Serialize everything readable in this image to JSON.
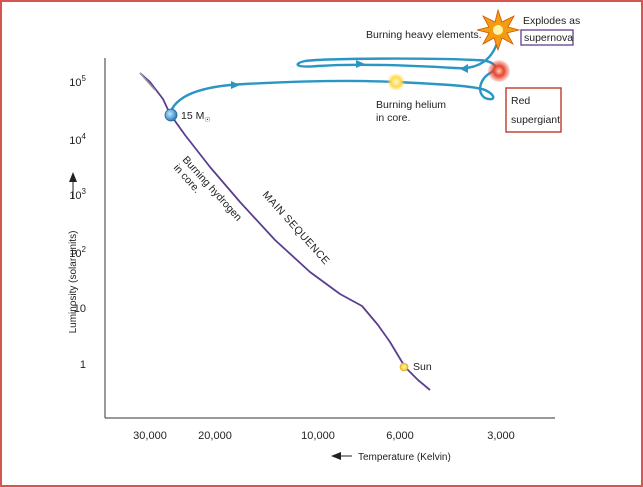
{
  "axes": {
    "ylabel": "Luminosity (solar units)",
    "xlabel": "Temperature (Kelvin)",
    "y_ticks": [
      {
        "base": "10",
        "exp": "5"
      },
      {
        "base": "10",
        "exp": "4"
      },
      {
        "base": "10",
        "exp": "3"
      },
      {
        "base": "10",
        "exp": "2"
      },
      {
        "base": "10",
        "exp": ""
      },
      {
        "base": "1",
        "exp": ""
      }
    ],
    "x_ticks": [
      "30,000",
      "20,000",
      "10,000",
      "6,000",
      "3,000"
    ]
  },
  "annotations": {
    "star_mass": "15 M",
    "star_mass_sub": "☉",
    "main_sequence": "MAIN SEQUENCE",
    "burning_hydrogen_1": "Burning hydrogen",
    "burning_hydrogen_2": "in core.",
    "burning_heavy": "Burning heavy elements.",
    "burning_helium_1": "Burning helium",
    "burning_helium_2": "in core.",
    "explodes_1": "Explodes as",
    "explodes_2": "supernova",
    "red_1": "Red",
    "red_2": "supergiant",
    "sun": "Sun"
  },
  "colors": {
    "frame": "#d9534f",
    "main_sequence_line": "#5b3e8e",
    "evolution_track": "#2b95c4",
    "supernova_box": "#6b4c9a",
    "red_supergiant_box": "#c0392b"
  }
}
